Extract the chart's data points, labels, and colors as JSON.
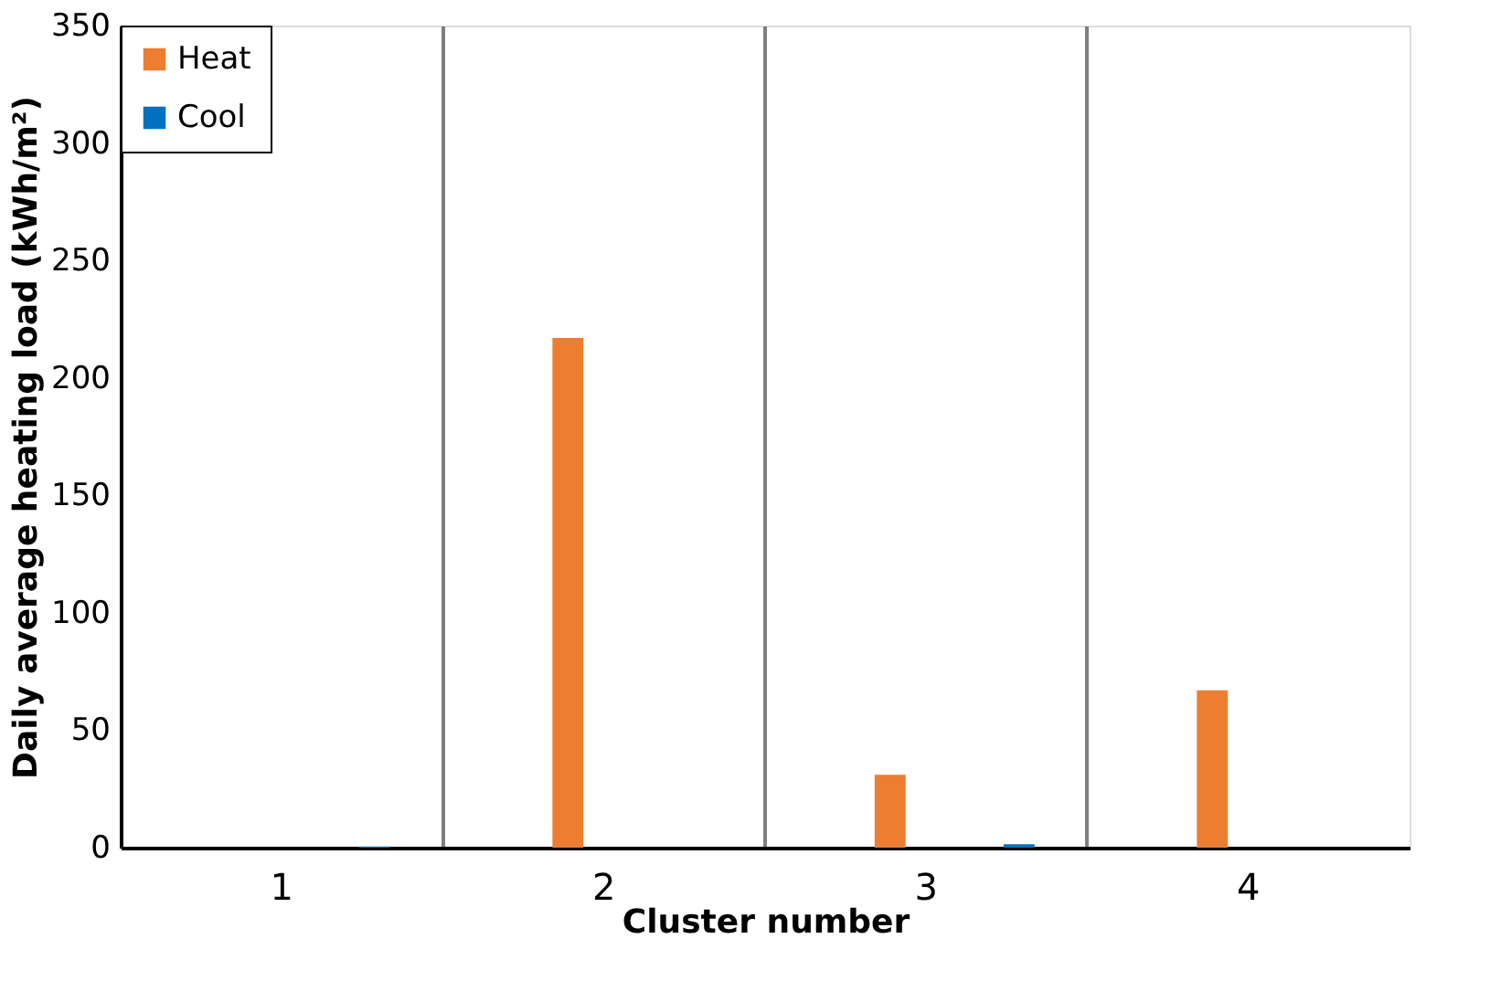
{
  "chart_data": {
    "type": "bar",
    "categories": [
      "1",
      "2",
      "3",
      "4"
    ],
    "series": [
      {
        "name": "Heat",
        "color": "#ed7d31",
        "values": [
          0,
          217,
          31,
          67
        ]
      },
      {
        "name": "Cool",
        "color": "#0070c0",
        "values": [
          0.5,
          0,
          1.5,
          0
        ]
      }
    ],
    "xlabel": "Cluster number",
    "ylabel": "Daily average heating load (kWh/m²)",
    "ylim": [
      0,
      350
    ],
    "yticks": [
      0,
      50,
      100,
      150,
      200,
      250,
      300,
      350
    ],
    "grid": "x",
    "legend": "top left"
  }
}
